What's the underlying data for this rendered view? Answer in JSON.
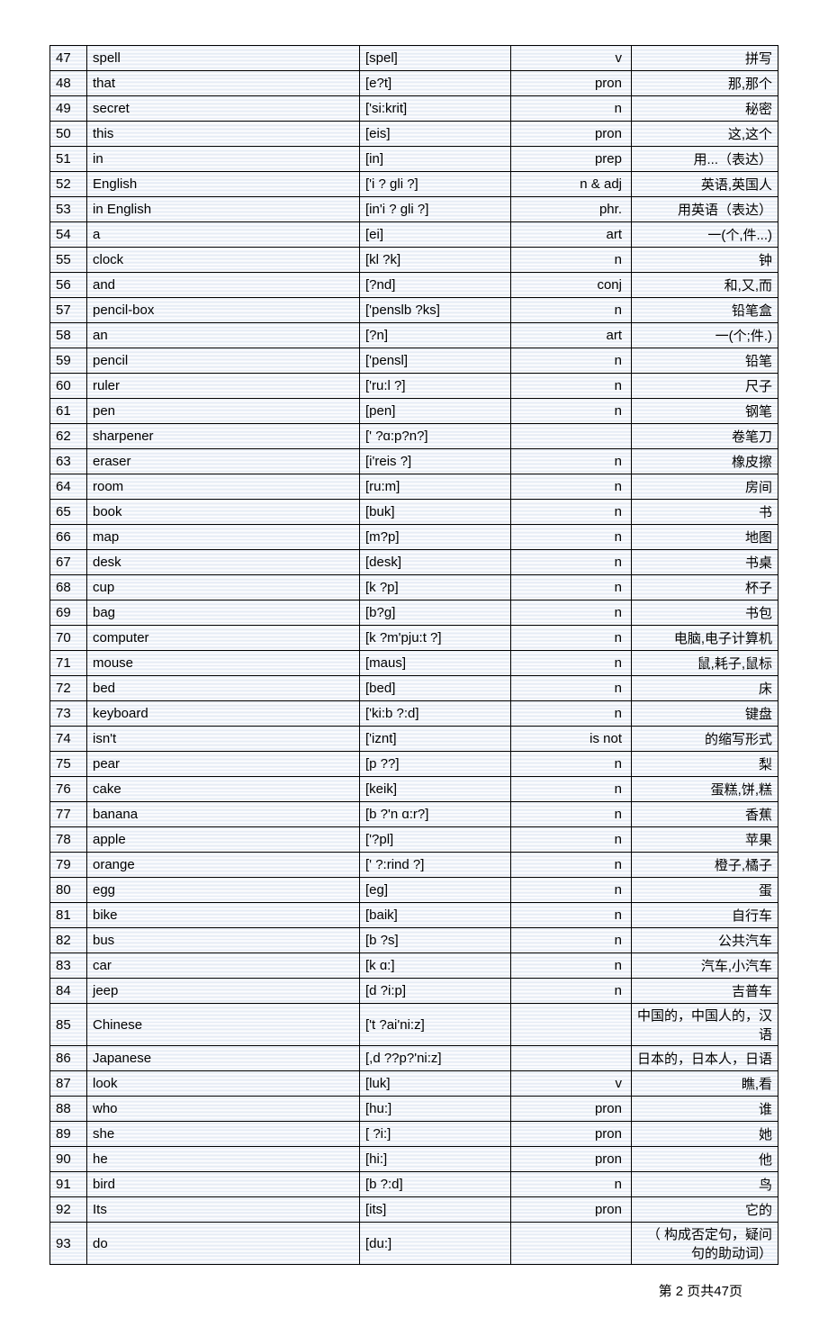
{
  "footer": "第 2 页共47页",
  "columns": [
    "num",
    "word",
    "phonetic",
    "pos",
    "meaning"
  ],
  "rows": [
    {
      "num": "47",
      "word": "spell",
      "phonetic": "[spel]",
      "pos": "v",
      "meaning": "拼写"
    },
    {
      "num": "48",
      "word": "that",
      "phonetic": "[e?t]",
      "pos": "pron",
      "meaning": "那,那个"
    },
    {
      "num": "49",
      "word": "secret",
      "phonetic": "['si:krit]",
      "pos": "n",
      "meaning": "秘密"
    },
    {
      "num": "50",
      "word": "this",
      "phonetic": "[eis]",
      "pos": "pron",
      "meaning": "这,这个"
    },
    {
      "num": "51",
      "word": "in",
      "phonetic": "[in]",
      "pos": "prep",
      "meaning": "用...（表达）"
    },
    {
      "num": "52",
      "word": "English",
      "phonetic": "['i ? gli ?]",
      "pos": "n & adj",
      "meaning": "英语,英国人"
    },
    {
      "num": "53",
      "word": "in English",
      "phonetic": "[in'i  ? gli ?]",
      "pos": "phr.",
      "meaning": "用英语（表达）"
    },
    {
      "num": "54",
      "word": "a",
      "phonetic": "[ei]",
      "pos": "art",
      "meaning": "一(个,件...)"
    },
    {
      "num": "55",
      "word": "clock",
      "phonetic": "[kl ?k]",
      "pos": "n",
      "meaning": "钟"
    },
    {
      "num": "56",
      "word": "and",
      "phonetic": "[?nd]",
      "pos": "conj",
      "meaning": "和,又,而"
    },
    {
      "num": "57",
      "word": "pencil-box",
      "phonetic": "['penslb  ?ks]",
      "pos": "n",
      "meaning": "铅笔盒"
    },
    {
      "num": "58",
      "word": "an",
      "phonetic": "[?n]",
      "pos": "art",
      "meaning": "一(个;件.)"
    },
    {
      "num": "59",
      "word": "pencil",
      "phonetic": "['pensl]",
      "pos": "n",
      "meaning": "铅笔"
    },
    {
      "num": "60",
      "word": "ruler",
      "phonetic": "['ru:l  ?]",
      "pos": "n",
      "meaning": "尺子"
    },
    {
      "num": "61",
      "word": "pen",
      "phonetic": "[pen]",
      "pos": "n",
      "meaning": "钢笔"
    },
    {
      "num": "62",
      "word": "sharpener",
      "phonetic": "[' ?ɑ:p?n?]",
      "pos": "",
      "meaning": "卷笔刀"
    },
    {
      "num": "63",
      "word": "eraser",
      "phonetic": "[i'reis  ?]",
      "pos": "n",
      "meaning": "橡皮擦"
    },
    {
      "num": "64",
      "word": "room",
      "phonetic": "[ru:m]",
      "pos": "n",
      "meaning": "房间"
    },
    {
      "num": "65",
      "word": "book",
      "phonetic": "[buk]",
      "pos": "n",
      "meaning": "书"
    },
    {
      "num": "66",
      "word": "map",
      "phonetic": "[m?p]",
      "pos": "n",
      "meaning": "地图"
    },
    {
      "num": "67",
      "word": "desk",
      "phonetic": "[desk]",
      "pos": "n",
      "meaning": "书桌"
    },
    {
      "num": "68",
      "word": "cup",
      "phonetic": "[k ?p]",
      "pos": "n",
      "meaning": "杯子"
    },
    {
      "num": "69",
      "word": "bag",
      "phonetic": "[b?g]",
      "pos": "n",
      "meaning": "书包"
    },
    {
      "num": "70",
      "word": "computer",
      "phonetic": "[k ?m'pju:t  ?]",
      "pos": "n",
      "meaning": "电脑,电子计算机"
    },
    {
      "num": "71",
      "word": "mouse",
      "phonetic": "[maus]",
      "pos": "n",
      "meaning": "鼠,耗子,鼠标"
    },
    {
      "num": "72",
      "word": "bed",
      "phonetic": "[bed]",
      "pos": "n",
      "meaning": "床"
    },
    {
      "num": "73",
      "word": "keyboard",
      "phonetic": "['ki:b  ?:d]",
      "pos": "n",
      "meaning": "键盘"
    },
    {
      "num": "74",
      "word": "isn't",
      "phonetic": "['iznt]",
      "pos": "is not",
      "meaning": "的缩写形式"
    },
    {
      "num": "75",
      "word": "pear",
      "phonetic": "[p ??]",
      "pos": "n",
      "meaning": "梨"
    },
    {
      "num": "76",
      "word": "cake",
      "phonetic": "[keik]",
      "pos": "n",
      "meaning": "蛋糕,饼,糕"
    },
    {
      "num": "77",
      "word": "banana",
      "phonetic": "[b ?'n ɑ:r?]",
      "pos": "n",
      "meaning": "香蕉"
    },
    {
      "num": "78",
      "word": "apple",
      "phonetic": "['?pl]",
      "pos": "n",
      "meaning": "苹果"
    },
    {
      "num": "79",
      "word": "orange",
      "phonetic": "[' ?:rind  ?]",
      "pos": "n",
      "meaning": "橙子,橘子"
    },
    {
      "num": "80",
      "word": "egg",
      "phonetic": "[eg]",
      "pos": "n",
      "meaning": "蛋"
    },
    {
      "num": "81",
      "word": "bike",
      "phonetic": "[baik]",
      "pos": "n",
      "meaning": "自行车"
    },
    {
      "num": "82",
      "word": "bus",
      "phonetic": "[b ?s]",
      "pos": "n",
      "meaning": "公共汽车"
    },
    {
      "num": "83",
      "word": "car",
      "phonetic": "[k ɑ:]",
      "pos": "n",
      "meaning": "汽车,小汽车"
    },
    {
      "num": "84",
      "word": "jeep",
      "phonetic": "[d ?i:p]",
      "pos": "n",
      "meaning": "吉普车"
    },
    {
      "num": "85",
      "word": "Chinese",
      "phonetic": "['t  ?ai'ni:z]",
      "pos": "",
      "meaning": "中国的，中国人的，汉语"
    },
    {
      "num": "86",
      "word": "Japanese",
      "phonetic": "[,d ??p?'ni:z]",
      "pos": "",
      "meaning": "日本的，日本人，日语"
    },
    {
      "num": "87",
      "word": "look",
      "phonetic": "[luk]",
      "pos": "v",
      "meaning": "瞧,看"
    },
    {
      "num": "88",
      "word": "who",
      "phonetic": "[hu:]",
      "pos": "pron",
      "meaning": "谁"
    },
    {
      "num": "89",
      "word": "she",
      "phonetic": "[ ?i:]",
      "pos": "pron",
      "meaning": "她"
    },
    {
      "num": "90",
      "word": "he",
      "phonetic": "[hi:]",
      "pos": "pron",
      "meaning": "他"
    },
    {
      "num": "91",
      "word": "bird",
      "phonetic": "[b ?:d]",
      "pos": "n",
      "meaning": "鸟"
    },
    {
      "num": "92",
      "word": "Its",
      "phonetic": "[its]",
      "pos": "pron",
      "meaning": "它的"
    },
    {
      "num": "93",
      "word": "do",
      "phonetic": "[du:]",
      "pos": "",
      "meaning": "（ 构成否定句，疑问句的助动词）"
    }
  ]
}
